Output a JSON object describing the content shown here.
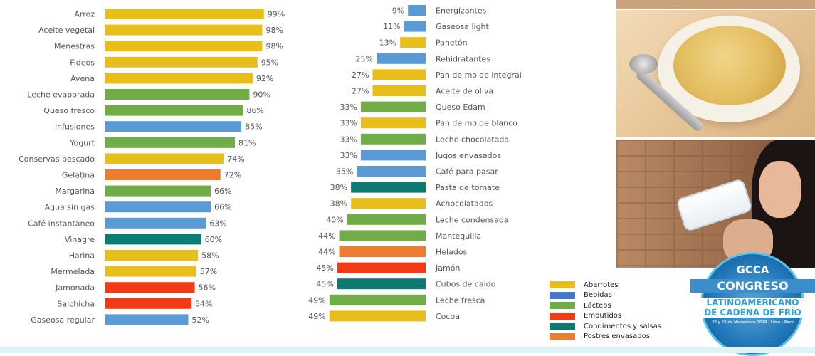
{
  "colors": {
    "Abarrotes": "#E8BE1A",
    "Bebidas": "#5B9BD5",
    "Lácteos": "#70AD47",
    "Embutidos": "#F23A17",
    "Condimentos y salsas": "#0E7A74",
    "Postres envasados": "#ED7D31"
  },
  "chart_data": [
    {
      "type": "bar",
      "orientation": "horizontal",
      "value_suffix": "%",
      "xlim": [
        0,
        100
      ],
      "categories": [
        "Arroz",
        "Aceite vegetal",
        "Menestras",
        "Fideos",
        "Avena",
        "Leche evaporada",
        "Queso fresco",
        "Infusiones",
        "Yogurt",
        "Conservas pescado",
        "Gelatina",
        "Margarina",
        "Agua sin gas",
        "Café instantáneo",
        "Vinagre",
        "Harina",
        "Mermelada",
        "Jamonada",
        "Salchicha",
        "Gaseosa regular"
      ],
      "values": [
        99,
        98,
        98,
        95,
        92,
        90,
        86,
        85,
        81,
        74,
        72,
        66,
        66,
        63,
        60,
        58,
        57,
        56,
        54,
        52
      ],
      "groups": [
        "Abarrotes",
        "Abarrotes",
        "Abarrotes",
        "Abarrotes",
        "Abarrotes",
        "Lácteos",
        "Lácteos",
        "Bebidas",
        "Lácteos",
        "Abarrotes",
        "Postres envasados",
        "Lácteos",
        "Bebidas",
        "Bebidas",
        "Condimentos y salsas",
        "Abarrotes",
        "Abarrotes",
        "Embutidos",
        "Embutidos",
        "Bebidas"
      ]
    },
    {
      "type": "bar",
      "orientation": "horizontal",
      "value_suffix": "%",
      "xlim": [
        0,
        100
      ],
      "categories": [
        "Energizantes",
        "Gaseosa light",
        "Panetón",
        "Rehidratantes",
        "Pan de molde integral",
        "Aceite de oliva",
        "Queso Edam",
        "Pan de molde blanco",
        "Leche chocolatada",
        "Jugos envasados",
        "Café para pasar",
        "Pasta de tomate",
        "Achocolatados",
        "Leche condensada",
        "Mantequilla",
        "Helados",
        "Jamón",
        "Cubos de caldo",
        "Leche fresca",
        "Cocoa"
      ],
      "values": [
        9,
        11,
        13,
        25,
        27,
        27,
        33,
        33,
        33,
        33,
        35,
        38,
        38,
        40,
        44,
        44,
        45,
        45,
        49,
        49
      ],
      "groups": [
        "Bebidas",
        "Bebidas",
        "Abarrotes",
        "Bebidas",
        "Abarrotes",
        "Abarrotes",
        "Lácteos",
        "Abarrotes",
        "Lácteos",
        "Bebidas",
        "Bebidas",
        "Condimentos y salsas",
        "Abarrotes",
        "Lácteos",
        "Lácteos",
        "Postres envasados",
        "Embutidos",
        "Condimentos y salsas",
        "Lácteos",
        "Abarrotes"
      ]
    }
  ],
  "legend": [
    {
      "label": "Abarrotes",
      "color": "#E8BE1A"
    },
    {
      "label": "Bebidas",
      "color": "#4A78C8"
    },
    {
      "label": "Lácteos",
      "color": "#70AD47"
    },
    {
      "label": "Embutidos",
      "color": "#F23A17"
    },
    {
      "label": "Condimentos y salsas",
      "color": "#0E7A74"
    },
    {
      "label": "Postres envasados",
      "color": "#ED7D31"
    }
  ],
  "logo": {
    "line1": "GCCA",
    "line2": "CONGRESO",
    "line3": "LATINOAMERICANO",
    "line4": "DE CADENA DE FRÍO",
    "line5": "22 y 23 de Noviembre 2018 | Lima - Perú"
  }
}
